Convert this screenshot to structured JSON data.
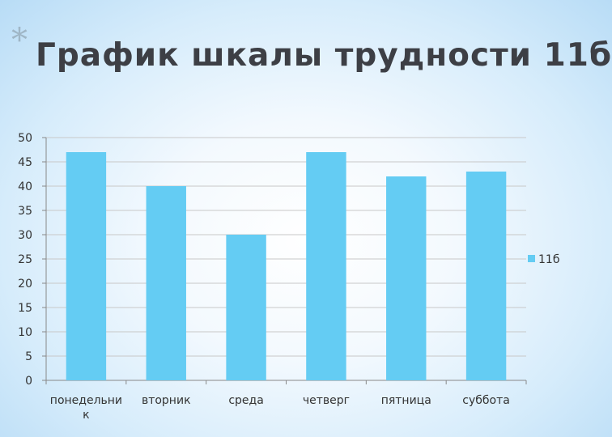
{
  "slide": {
    "title_bullet": "*",
    "title": "График шкалы трудности 11б"
  },
  "colors": {
    "bar": "#64ccf3",
    "grid": "#c8c8c8",
    "axis": "#888888",
    "title": "#3d3f45"
  },
  "chart_data": {
    "type": "bar",
    "title": "",
    "xlabel": "",
    "ylabel": "",
    "categories": [
      "понедельник",
      "вторник",
      "среда",
      "четверг",
      "пятница",
      "суббота"
    ],
    "category_lines": [
      [
        "понедельни",
        "к"
      ],
      [
        "вторник"
      ],
      [
        "среда"
      ],
      [
        "четверг"
      ],
      [
        "пятница"
      ],
      [
        "суббота"
      ]
    ],
    "series": [
      {
        "name": "11б",
        "values": [
          47,
          40,
          30,
          47,
          42,
          43
        ]
      }
    ],
    "ylim": [
      0,
      50
    ],
    "yticks": [
      0,
      5,
      10,
      15,
      20,
      25,
      30,
      35,
      40,
      45,
      50
    ],
    "grid": true,
    "legend": "right"
  }
}
